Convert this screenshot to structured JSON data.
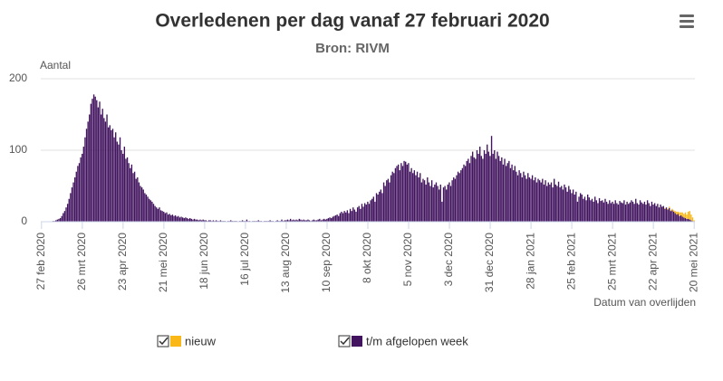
{
  "chart_data": {
    "type": "stacked-bar",
    "title": "Overledenen per dag vanaf 27 februari 2020",
    "subtitle": "Bron: RIVM",
    "y_label": "Aantal",
    "x_label": "Datum van overlijden",
    "ylim": [
      0,
      200
    ],
    "yticks": [
      0,
      100,
      200
    ],
    "grid": true,
    "categories": [
      "27 feb 2020",
      null,
      null,
      null,
      null,
      null,
      null,
      null,
      null,
      null,
      null,
      null,
      null,
      null,
      null,
      null,
      null,
      null,
      null,
      null,
      null,
      null,
      null,
      null,
      null,
      null,
      null,
      null,
      "26 mrt 2020",
      null,
      null,
      null,
      null,
      null,
      null,
      null,
      null,
      null,
      null,
      null,
      null,
      null,
      null,
      null,
      null,
      null,
      null,
      null,
      null,
      null,
      null,
      null,
      null,
      null,
      null,
      null,
      "23 apr 2020",
      null,
      null,
      null,
      null,
      null,
      null,
      null,
      null,
      null,
      null,
      null,
      null,
      null,
      null,
      null,
      null,
      null,
      null,
      null,
      null,
      null,
      null,
      null,
      null,
      null,
      null,
      null,
      "21 mei 2020",
      null,
      null,
      null,
      null,
      null,
      null,
      null,
      null,
      null,
      null,
      null,
      null,
      null,
      null,
      null,
      null,
      null,
      null,
      null,
      null,
      null,
      null,
      null,
      null,
      null,
      null,
      null,
      "18 jun 2020",
      null,
      null,
      null,
      null,
      null,
      null,
      null,
      null,
      null,
      null,
      null,
      null,
      null,
      null,
      null,
      null,
      null,
      null,
      null,
      null,
      null,
      null,
      null,
      null,
      null,
      null,
      null,
      "16 jul 2020",
      null,
      null,
      null,
      null,
      null,
      null,
      null,
      null,
      null,
      null,
      null,
      null,
      null,
      null,
      null,
      null,
      null,
      null,
      null,
      null,
      null,
      null,
      null,
      null,
      null,
      null,
      null,
      "13 aug 2020",
      null,
      null,
      null,
      null,
      null,
      null,
      null,
      null,
      null,
      null,
      null,
      null,
      null,
      null,
      null,
      null,
      null,
      null,
      null,
      null,
      null,
      null,
      null,
      null,
      null,
      null,
      null,
      "10 sep 2020",
      null,
      null,
      null,
      null,
      null,
      null,
      null,
      null,
      null,
      null,
      null,
      null,
      null,
      null,
      null,
      null,
      null,
      null,
      null,
      null,
      null,
      null,
      null,
      null,
      null,
      null,
      null,
      "8 okt 2020",
      null,
      null,
      null,
      null,
      null,
      null,
      null,
      null,
      null,
      null,
      null,
      null,
      null,
      null,
      null,
      null,
      null,
      null,
      null,
      null,
      null,
      null,
      null,
      null,
      null,
      null,
      null,
      "5 nov 2020",
      null,
      null,
      null,
      null,
      null,
      null,
      null,
      null,
      null,
      null,
      null,
      null,
      null,
      null,
      null,
      null,
      null,
      null,
      null,
      null,
      null,
      null,
      null,
      null,
      null,
      null,
      null,
      "3 dec 2020",
      null,
      null,
      null,
      null,
      null,
      null,
      null,
      null,
      null,
      null,
      null,
      null,
      null,
      null,
      null,
      null,
      null,
      null,
      null,
      null,
      null,
      null,
      null,
      null,
      null,
      null,
      null,
      "31 dec 2020",
      null,
      null,
      null,
      null,
      null,
      null,
      null,
      null,
      null,
      null,
      null,
      null,
      null,
      null,
      null,
      null,
      null,
      null,
      null,
      null,
      null,
      null,
      null,
      null,
      null,
      null,
      null,
      "28 jan 2021",
      null,
      null,
      null,
      null,
      null,
      null,
      null,
      null,
      null,
      null,
      null,
      null,
      null,
      null,
      null,
      null,
      null,
      null,
      null,
      null,
      null,
      null,
      null,
      null,
      null,
      null,
      null,
      "25 feb 2021",
      null,
      null,
      null,
      null,
      null,
      null,
      null,
      null,
      null,
      null,
      null,
      null,
      null,
      null,
      null,
      null,
      null,
      null,
      null,
      null,
      null,
      null,
      null,
      null,
      null,
      null,
      null,
      "25 mrt 2021",
      null,
      null,
      null,
      null,
      null,
      null,
      null,
      null,
      null,
      null,
      null,
      null,
      null,
      null,
      null,
      null,
      null,
      null,
      null,
      null,
      null,
      null,
      null,
      null,
      null,
      null,
      null,
      "22 apr 2021",
      null,
      null,
      null,
      null,
      null,
      null,
      null,
      null,
      null,
      null,
      null,
      null,
      null,
      null,
      null,
      null,
      null,
      null,
      null,
      null,
      null,
      null,
      null,
      null,
      null,
      null,
      null,
      "20 mei 2021"
    ],
    "series": [
      {
        "name": "t/m afgelopen week",
        "color": "#42145f",
        "values": [
          0,
          0,
          0,
          0,
          0,
          0,
          0,
          0,
          1,
          1,
          2,
          3,
          4,
          5,
          8,
          12,
          15,
          20,
          25,
          32,
          40,
          48,
          55,
          62,
          70,
          78,
          82,
          90,
          95,
          105,
          118,
          130,
          140,
          150,
          165,
          172,
          178,
          175,
          170,
          160,
          168,
          150,
          158,
          145,
          140,
          150,
          132,
          135,
          128,
          130,
          118,
          125,
          112,
          108,
          118,
          100,
          95,
          105,
          88,
          90,
          82,
          75,
          80,
          68,
          70,
          60,
          62,
          55,
          50,
          48,
          45,
          40,
          38,
          35,
          32,
          30,
          28,
          25,
          22,
          20,
          18,
          20,
          16,
          15,
          14,
          12,
          13,
          10,
          11,
          9,
          10,
          8,
          9,
          7,
          8,
          6,
          7,
          6,
          5,
          6,
          5,
          4,
          5,
          4,
          3,
          4,
          3,
          3,
          2,
          3,
          2,
          3,
          2,
          2,
          1,
          2,
          2,
          1,
          2,
          1,
          2,
          1,
          1,
          2,
          1,
          1,
          1,
          0,
          1,
          1,
          2,
          1,
          1,
          1,
          1,
          0,
          1,
          1,
          2,
          1,
          1,
          3,
          1,
          1,
          0,
          1,
          1,
          1,
          1,
          2,
          1,
          1,
          0,
          1,
          1,
          1,
          1,
          2,
          1,
          1,
          0,
          1,
          2,
          1,
          1,
          3,
          1,
          2,
          2,
          3,
          2,
          4,
          2,
          3,
          2,
          3,
          2,
          4,
          3,
          2,
          3,
          2,
          2,
          3,
          2,
          1,
          2,
          3,
          2,
          2,
          3,
          4,
          2,
          3,
          4,
          3,
          4,
          5,
          6,
          5,
          7,
          8,
          9,
          10,
          8,
          12,
          14,
          12,
          15,
          13,
          16,
          12,
          18,
          15,
          20,
          17,
          14,
          20,
          22,
          18,
          25,
          21,
          26,
          24,
          28,
          25,
          30,
          32,
          35,
          28,
          40,
          38,
          42,
          45,
          40,
          55,
          50,
          58,
          60,
          55,
          65,
          70,
          68,
          75,
          78,
          80,
          72,
          82,
          78,
          85,
          84,
          80,
          82,
          70,
          75,
          68,
          72,
          65,
          70,
          62,
          68,
          55,
          60,
          58,
          52,
          62,
          55,
          50,
          58,
          48,
          52,
          55,
          50,
          45,
          52,
          28,
          48,
          50,
          45,
          52,
          55,
          50,
          58,
          62,
          60,
          65,
          70,
          68,
          72,
          75,
          80,
          78,
          85,
          88,
          82,
          92,
          98,
          90,
          88,
          100,
          95,
          105,
          92,
          88,
          100,
          95,
          108,
          98,
          92,
          120,
          95,
          100,
          88,
          98,
          92,
          85,
          90,
          80,
          88,
          78,
          82,
          85,
          75,
          80,
          72,
          78,
          70,
          65,
          72,
          68,
          62,
          70,
          65,
          60,
          68,
          62,
          60,
          65,
          58,
          62,
          55,
          60,
          58,
          55,
          60,
          52,
          58,
          50,
          55,
          52,
          55,
          48,
          60,
          52,
          50,
          56,
          48,
          50,
          45,
          52,
          48,
          42,
          50,
          45,
          40,
          45,
          38,
          42,
          28,
          35,
          40,
          38,
          32,
          35,
          30,
          38,
          34,
          30,
          32,
          28,
          35,
          30,
          26,
          33,
          29,
          30,
          27,
          32,
          28,
          25,
          30,
          26,
          28,
          25,
          30,
          26,
          24,
          29,
          27,
          26,
          30,
          24,
          28,
          25,
          27,
          30,
          28,
          25,
          32,
          26,
          24,
          30,
          27,
          25,
          28,
          24,
          30,
          26,
          22,
          28,
          24,
          26,
          22,
          25,
          20,
          24,
          21,
          22,
          18,
          20,
          17,
          19,
          15,
          16,
          14,
          12,
          10,
          11,
          8,
          9,
          7,
          6,
          5,
          4,
          4,
          3,
          2,
          1,
          0
        ]
      },
      {
        "name": "nieuw",
        "color": "#f9b818",
        "values": [
          0,
          0,
          0,
          0,
          0,
          0,
          0,
          0,
          0,
          0,
          0,
          0,
          0,
          0,
          0,
          0,
          0,
          0,
          0,
          0,
          0,
          0,
          0,
          0,
          0,
          0,
          0,
          0,
          0,
          0,
          0,
          0,
          0,
          0,
          0,
          0,
          0,
          0,
          0,
          0,
          0,
          0,
          0,
          0,
          0,
          0,
          0,
          0,
          0,
          0,
          0,
          0,
          0,
          0,
          0,
          0,
          0,
          0,
          0,
          0,
          0,
          0,
          0,
          0,
          0,
          0,
          0,
          0,
          0,
          0,
          0,
          0,
          0,
          0,
          0,
          0,
          0,
          0,
          0,
          0,
          0,
          0,
          0,
          0,
          0,
          0,
          0,
          0,
          0,
          0,
          0,
          0,
          0,
          0,
          0,
          0,
          0,
          0,
          0,
          0,
          0,
          0,
          0,
          0,
          0,
          0,
          0,
          0,
          0,
          0,
          0,
          0,
          0,
          0,
          0,
          0,
          0,
          0,
          0,
          0,
          0,
          0,
          0,
          0,
          0,
          0,
          0,
          0,
          0,
          0,
          0,
          0,
          0,
          0,
          0,
          0,
          0,
          0,
          0,
          0,
          0,
          0,
          0,
          0,
          0,
          0,
          0,
          0,
          0,
          0,
          0,
          0,
          0,
          0,
          0,
          0,
          0,
          0,
          0,
          0,
          0,
          0,
          0,
          0,
          0,
          0,
          0,
          0,
          0,
          0,
          0,
          0,
          0,
          0,
          0,
          0,
          0,
          0,
          0,
          0,
          0,
          0,
          0,
          0,
          0,
          0,
          0,
          0,
          0,
          0,
          0,
          0,
          0,
          0,
          0,
          0,
          0,
          0,
          0,
          0,
          0,
          0,
          0,
          0,
          0,
          0,
          0,
          0,
          0,
          0,
          0,
          0,
          0,
          0,
          0,
          0,
          0,
          0,
          0,
          0,
          0,
          0,
          0,
          0,
          0,
          0,
          0,
          0,
          0,
          0,
          0,
          0,
          0,
          0,
          0,
          0,
          0,
          0,
          0,
          0,
          0,
          0,
          0,
          0,
          0,
          0,
          0,
          0,
          0,
          0,
          0,
          0,
          0,
          0,
          0,
          0,
          0,
          0,
          0,
          0,
          0,
          0,
          0,
          0,
          0,
          0,
          0,
          0,
          0,
          0,
          0,
          0,
          0,
          0,
          0,
          0,
          0,
          0,
          0,
          0,
          0,
          0,
          0,
          0,
          0,
          0,
          0,
          0,
          0,
          0,
          0,
          0,
          0,
          0,
          0,
          0,
          0,
          0,
          0,
          0,
          0,
          0,
          0,
          0,
          0,
          0,
          0,
          0,
          0,
          0,
          0,
          0,
          0,
          0,
          0,
          0,
          0,
          0,
          0,
          0,
          0,
          0,
          0,
          0,
          0,
          0,
          0,
          0,
          0,
          0,
          0,
          0,
          0,
          0,
          0,
          0,
          0,
          0,
          0,
          0,
          0,
          0,
          0,
          0,
          0,
          0,
          0,
          0,
          0,
          0,
          0,
          0,
          0,
          0,
          0,
          0,
          0,
          0,
          0,
          0,
          0,
          0,
          0,
          0,
          0,
          0,
          0,
          0,
          0,
          0,
          0,
          0,
          0,
          0,
          0,
          0,
          0,
          0,
          0,
          0,
          0,
          0,
          0,
          0,
          0,
          0,
          0,
          0,
          0,
          0,
          0,
          0,
          0,
          0,
          0,
          0,
          0,
          0,
          0,
          0,
          0,
          0,
          0,
          0,
          0,
          0,
          0,
          0,
          0,
          0,
          0,
          0,
          0,
          0,
          0,
          0,
          0,
          0,
          0,
          0,
          0,
          0,
          0,
          0,
          0,
          0,
          0,
          0,
          1,
          0,
          1,
          2,
          1,
          2,
          2,
          3,
          4,
          3,
          5,
          4,
          6,
          5,
          8,
          6,
          10,
          12,
          8,
          5,
          2
        ]
      }
    ]
  }
}
